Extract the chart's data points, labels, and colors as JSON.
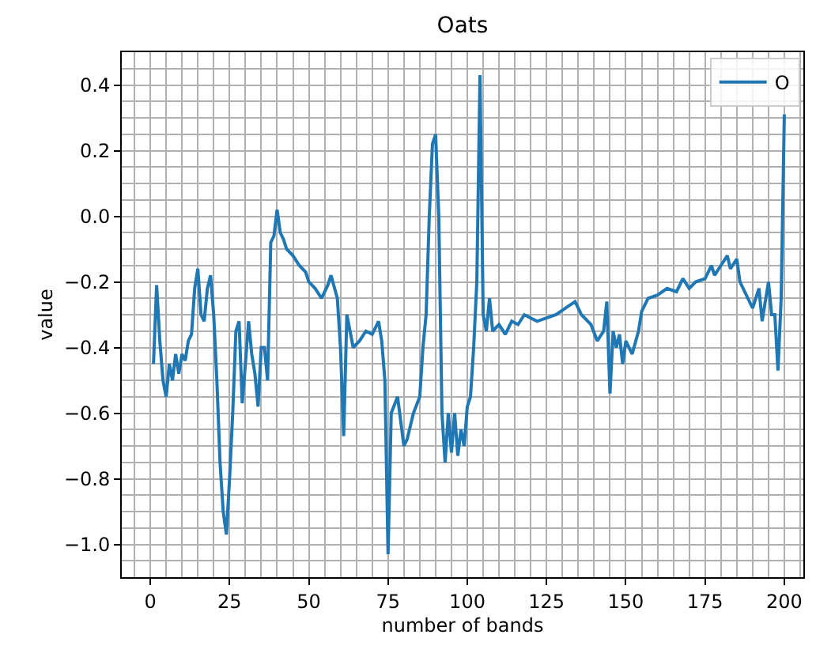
{
  "chart_data": {
    "type": "line",
    "title": "Oats",
    "xlabel": "number of bands",
    "ylabel": "value",
    "xlim": [
      -9,
      206
    ],
    "xticks": [
      0,
      25,
      50,
      75,
      100,
      125,
      150,
      175,
      200
    ],
    "ylim": [
      -1.1,
      0.5
    ],
    "yticks": [
      {
        "value": -1.0,
        "label": "−1.0"
      },
      {
        "value": -0.8,
        "label": "−0.8"
      },
      {
        "value": -0.6,
        "label": "−0.6"
      },
      {
        "value": -0.4,
        "label": "−0.4"
      },
      {
        "value": -0.2,
        "label": "−0.2"
      },
      {
        "value": 0.0,
        "label": "0.0"
      },
      {
        "value": 0.2,
        "label": "0.2"
      },
      {
        "value": 0.4,
        "label": "0.4"
      }
    ],
    "grid": true,
    "legend": "top right",
    "series": [
      {
        "name": "O",
        "color": "#1f77b4",
        "x": [
          1,
          2,
          3,
          4,
          5,
          6,
          7,
          8,
          9,
          10,
          11,
          12,
          13,
          14,
          15,
          16,
          17,
          18,
          19,
          20,
          21,
          22,
          23,
          24,
          25,
          26,
          27,
          28,
          29,
          30,
          31,
          32,
          33,
          34,
          35,
          36,
          37,
          38,
          39,
          40,
          41,
          42,
          43,
          45,
          47,
          49,
          50,
          52,
          54,
          56,
          57,
          59,
          60,
          61,
          62,
          64,
          66,
          68,
          70,
          72,
          73,
          74,
          75,
          76,
          78,
          80,
          81,
          83,
          85,
          86,
          87,
          88,
          89,
          90,
          91,
          92,
          93,
          94,
          95,
          96,
          97,
          98,
          99,
          100,
          101,
          102,
          103,
          104,
          105,
          106,
          107,
          108,
          110,
          112,
          114,
          116,
          118,
          120,
          122,
          125,
          128,
          131,
          134,
          136,
          139,
          141,
          143,
          144,
          145,
          146,
          147,
          148,
          149,
          150,
          152,
          154,
          155,
          157,
          160,
          163,
          166,
          168,
          170,
          172,
          175,
          177,
          178,
          180,
          182,
          183,
          185,
          186,
          188,
          190,
          192,
          193,
          195,
          196,
          197,
          198,
          199,
          200
        ],
        "values": [
          -0.45,
          -0.21,
          -0.38,
          -0.5,
          -0.55,
          -0.45,
          -0.5,
          -0.42,
          -0.48,
          -0.42,
          -0.44,
          -0.38,
          -0.36,
          -0.22,
          -0.16,
          -0.3,
          -0.32,
          -0.22,
          -0.18,
          -0.3,
          -0.5,
          -0.75,
          -0.9,
          -0.97,
          -0.8,
          -0.6,
          -0.35,
          -0.32,
          -0.57,
          -0.45,
          -0.32,
          -0.42,
          -0.48,
          -0.58,
          -0.4,
          -0.4,
          -0.5,
          -0.08,
          -0.06,
          0.02,
          -0.05,
          -0.07,
          -0.1,
          -0.12,
          -0.15,
          -0.17,
          -0.2,
          -0.22,
          -0.25,
          -0.21,
          -0.18,
          -0.25,
          -0.4,
          -0.67,
          -0.3,
          -0.4,
          -0.38,
          -0.35,
          -0.36,
          -0.32,
          -0.38,
          -0.5,
          -1.03,
          -0.6,
          -0.55,
          -0.7,
          -0.68,
          -0.6,
          -0.55,
          -0.4,
          -0.3,
          0.0,
          0.22,
          0.25,
          0.0,
          -0.6,
          -0.75,
          -0.6,
          -0.72,
          -0.6,
          -0.73,
          -0.65,
          -0.7,
          -0.58,
          -0.55,
          -0.4,
          -0.2,
          0.43,
          -0.3,
          -0.35,
          -0.25,
          -0.35,
          -0.33,
          -0.36,
          -0.32,
          -0.33,
          -0.3,
          -0.31,
          -0.32,
          -0.31,
          -0.3,
          -0.28,
          -0.26,
          -0.3,
          -0.33,
          -0.38,
          -0.35,
          -0.26,
          -0.54,
          -0.35,
          -0.4,
          -0.36,
          -0.45,
          -0.38,
          -0.42,
          -0.35,
          -0.29,
          -0.25,
          -0.24,
          -0.22,
          -0.23,
          -0.19,
          -0.22,
          -0.2,
          -0.19,
          -0.15,
          -0.18,
          -0.15,
          -0.12,
          -0.16,
          -0.13,
          -0.2,
          -0.24,
          -0.28,
          -0.22,
          -0.32,
          -0.2,
          -0.3,
          -0.3,
          -0.47,
          -0.25,
          0.31
        ]
      }
    ]
  }
}
